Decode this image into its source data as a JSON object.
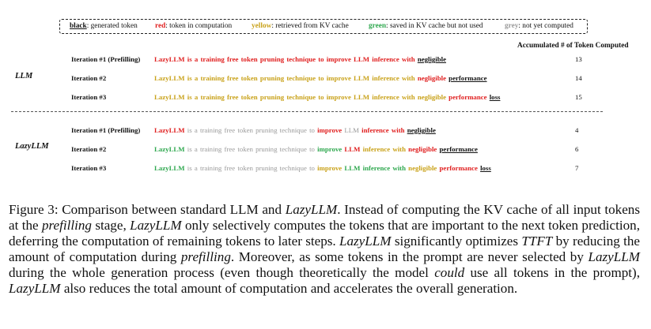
{
  "legend": [
    {
      "key": "black",
      "desc": ": generated token",
      "color": "black"
    },
    {
      "key": "red",
      "desc": ": token in computation",
      "color": "red"
    },
    {
      "key": "yellow",
      "desc": ": retrieved from KV cache",
      "color": "yellow"
    },
    {
      "key": "green",
      "desc": ": saved in KV cache but not used",
      "color": "green"
    },
    {
      "key": "grey",
      "desc": ": not yet computed",
      "color": "grey"
    }
  ],
  "header_count": "Accumulated # of Token Computed",
  "groups": [
    {
      "label": "LLM",
      "rows": [
        {
          "iteration": "Iteration #1 (Prefilling)",
          "count": "13",
          "tokens": [
            {
              "t": "LazyLLM",
              "c": "red"
            },
            {
              "t": "is",
              "c": "red"
            },
            {
              "t": "a",
              "c": "red"
            },
            {
              "t": "training",
              "c": "red"
            },
            {
              "t": "free",
              "c": "red"
            },
            {
              "t": "token",
              "c": "red"
            },
            {
              "t": "pruning",
              "c": "red"
            },
            {
              "t": "technique",
              "c": "red"
            },
            {
              "t": "to",
              "c": "red"
            },
            {
              "t": "improve",
              "c": "red"
            },
            {
              "t": "LLM",
              "c": "red"
            },
            {
              "t": "inference",
              "c": "red"
            },
            {
              "t": "with",
              "c": "red"
            },
            {
              "t": "negligible",
              "c": "black"
            }
          ]
        },
        {
          "iteration": "Iteration #2",
          "count": "14",
          "tokens": [
            {
              "t": "LazyLLM",
              "c": "yellow"
            },
            {
              "t": "is",
              "c": "yellow"
            },
            {
              "t": "a",
              "c": "yellow"
            },
            {
              "t": "training",
              "c": "yellow"
            },
            {
              "t": "free",
              "c": "yellow"
            },
            {
              "t": "token",
              "c": "yellow"
            },
            {
              "t": "pruning",
              "c": "yellow"
            },
            {
              "t": "technique",
              "c": "yellow"
            },
            {
              "t": "to",
              "c": "yellow"
            },
            {
              "t": "improve",
              "c": "yellow"
            },
            {
              "t": "LLM",
              "c": "yellow"
            },
            {
              "t": "inference",
              "c": "yellow"
            },
            {
              "t": "with",
              "c": "yellow"
            },
            {
              "t": "negligible",
              "c": "red"
            },
            {
              "t": "performance",
              "c": "black"
            }
          ]
        },
        {
          "iteration": "Iteration #3",
          "count": "15",
          "tokens": [
            {
              "t": "LazyLLM",
              "c": "yellow"
            },
            {
              "t": "is",
              "c": "yellow"
            },
            {
              "t": "a",
              "c": "yellow"
            },
            {
              "t": "training",
              "c": "yellow"
            },
            {
              "t": "free",
              "c": "yellow"
            },
            {
              "t": "token",
              "c": "yellow"
            },
            {
              "t": "pruning",
              "c": "yellow"
            },
            {
              "t": "technique",
              "c": "yellow"
            },
            {
              "t": "to",
              "c": "yellow"
            },
            {
              "t": "improve",
              "c": "yellow"
            },
            {
              "t": "LLM",
              "c": "yellow"
            },
            {
              "t": "inference",
              "c": "yellow"
            },
            {
              "t": "with",
              "c": "yellow"
            },
            {
              "t": "negligible",
              "c": "yellow"
            },
            {
              "t": "performance",
              "c": "red"
            },
            {
              "t": "loss",
              "c": "black"
            }
          ]
        }
      ]
    },
    {
      "label": "LazyLLM",
      "rows": [
        {
          "iteration": "Iteration #1 (Prefilling)",
          "count": "4",
          "tokens": [
            {
              "t": "LazyLLM",
              "c": "red"
            },
            {
              "t": "is",
              "c": "grey"
            },
            {
              "t": "a",
              "c": "grey"
            },
            {
              "t": "training",
              "c": "grey"
            },
            {
              "t": "free",
              "c": "grey"
            },
            {
              "t": "token",
              "c": "grey"
            },
            {
              "t": "pruning",
              "c": "grey"
            },
            {
              "t": "technique",
              "c": "grey"
            },
            {
              "t": "to",
              "c": "grey"
            },
            {
              "t": "improve",
              "c": "red"
            },
            {
              "t": "LLM",
              "c": "grey"
            },
            {
              "t": "inference",
              "c": "red"
            },
            {
              "t": "with",
              "c": "red"
            },
            {
              "t": "negligible",
              "c": "black"
            }
          ]
        },
        {
          "iteration": "Iteration #2",
          "count": "6",
          "tokens": [
            {
              "t": "LazyLLM",
              "c": "green"
            },
            {
              "t": "is",
              "c": "grey"
            },
            {
              "t": "a",
              "c": "grey"
            },
            {
              "t": "training",
              "c": "grey"
            },
            {
              "t": "free",
              "c": "grey"
            },
            {
              "t": "token",
              "c": "grey"
            },
            {
              "t": "pruning",
              "c": "grey"
            },
            {
              "t": "technique",
              "c": "grey"
            },
            {
              "t": "to",
              "c": "grey"
            },
            {
              "t": "improve",
              "c": "green"
            },
            {
              "t": "LLM",
              "c": "red"
            },
            {
              "t": "inference",
              "c": "yellow"
            },
            {
              "t": "with",
              "c": "yellow"
            },
            {
              "t": "negligible",
              "c": "red"
            },
            {
              "t": "performance",
              "c": "black"
            }
          ]
        },
        {
          "iteration": "Iteration #3",
          "count": "7",
          "tokens": [
            {
              "t": "LazyLLM",
              "c": "green"
            },
            {
              "t": "is",
              "c": "grey"
            },
            {
              "t": "a",
              "c": "grey"
            },
            {
              "t": "training",
              "c": "grey"
            },
            {
              "t": "free",
              "c": "grey"
            },
            {
              "t": "token",
              "c": "grey"
            },
            {
              "t": "pruning",
              "c": "grey"
            },
            {
              "t": "technique",
              "c": "grey"
            },
            {
              "t": "to",
              "c": "grey"
            },
            {
              "t": "improve",
              "c": "yellow"
            },
            {
              "t": "LLM",
              "c": "green"
            },
            {
              "t": "inference",
              "c": "green"
            },
            {
              "t": "with",
              "c": "green"
            },
            {
              "t": "negligible",
              "c": "yellow"
            },
            {
              "t": "performance",
              "c": "red"
            },
            {
              "t": "loss",
              "c": "black"
            }
          ]
        }
      ]
    }
  ],
  "caption": {
    "p1": "Figure 3: Comparison between standard LLM and ",
    "em1": "LazyLLM",
    "p2": ". Instead of computing the KV cache of all input tokens at the ",
    "em2": "prefilling",
    "p3": " stage, ",
    "em3": "LazyLLM",
    "p4": " only selectively computes the tokens that are important to the next token prediction, deferring the computation of remaining tokens to later steps. ",
    "em4": "LazyLLM",
    "p5": " significantly optimizes ",
    "em5": "TTFT",
    "p6": " by reducing the amount of computation during ",
    "em6": "prefilling",
    "p7": ". Moreover, as some tokens in the prompt are never selected by ",
    "em7": "LazyLLM",
    "p8": " during the whole generation process (even though theoretically the model ",
    "em8": "could",
    "p9": " use all tokens in the prompt), ",
    "em9": "LazyLLM",
    "p10": " also reduces the total amount of computation and accelerates the overall generation."
  }
}
